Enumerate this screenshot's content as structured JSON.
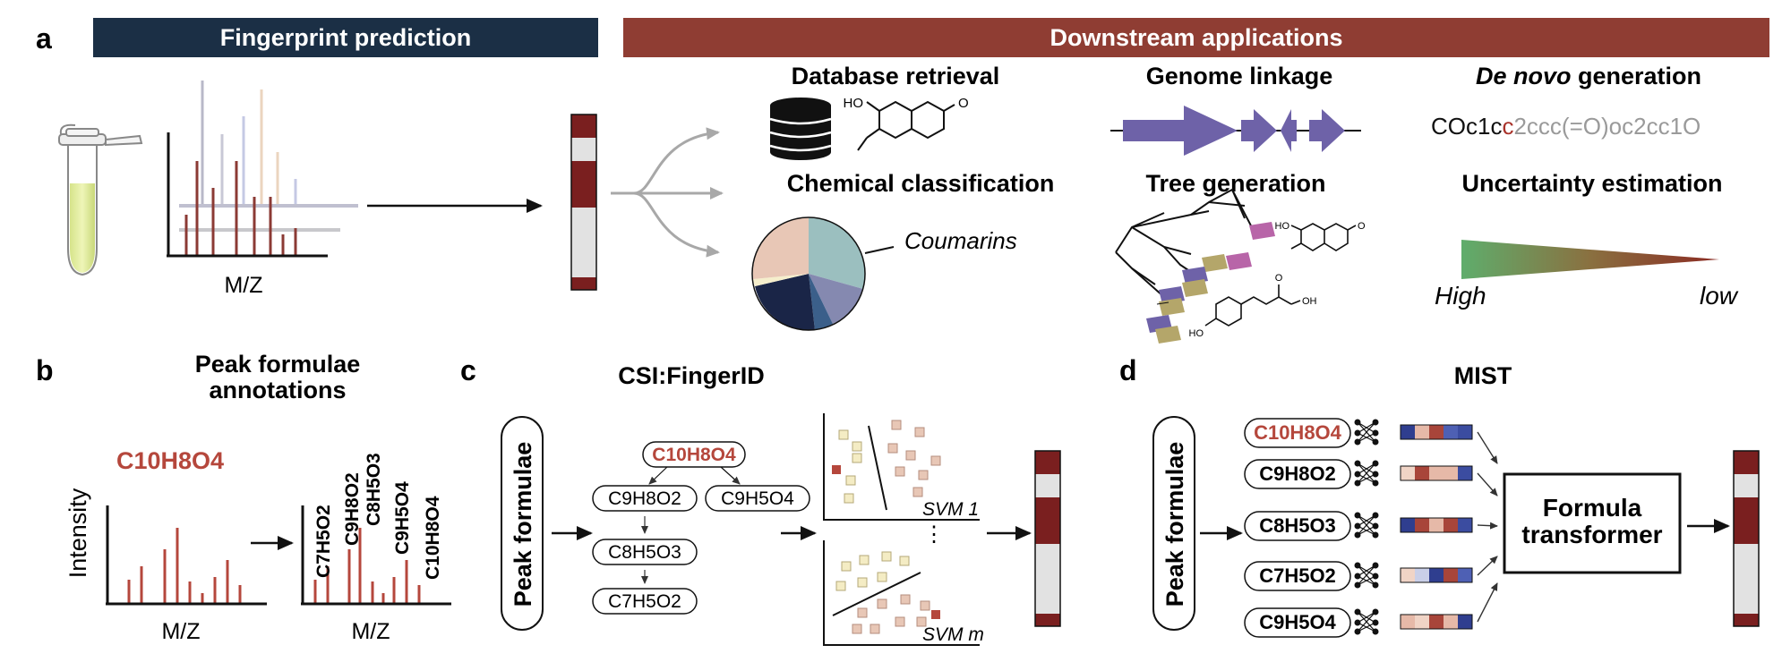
{
  "panel_a": {
    "letter": "a",
    "banner_left": "Fingerprint prediction",
    "banner_right": "Downstream applications",
    "mz_label": "M/Z",
    "db_title": "Database retrieval",
    "class_title": "Chemical classification",
    "coumarins_label": "Coumarins",
    "genome_title": "Genome linkage",
    "tree_title": "Tree generation",
    "denovo_italic": "De novo",
    "denovo_rest": " generation",
    "smiles_dark": "COc1c",
    "smiles_red": "c",
    "smiles_gray": "2ccc(=O)oc2cc1O",
    "uncert_title": "Uncertainty estimation",
    "high_label": "High",
    "low_label": "low",
    "mol_ho": "HO",
    "mol_o": "O",
    "mol_oh": "OH"
  },
  "panel_b": {
    "letter": "b",
    "title_line1": "Peak formulae",
    "title_line2": "annotations",
    "formula": "C10H8O4",
    "intensity": "Intensity",
    "mz1": "M/Z",
    "mz2": "M/Z",
    "peaks": [
      "C7H5O2",
      "C9H8O2",
      "C8H5O3",
      "C9H5O4",
      "C10H8O4"
    ]
  },
  "panel_c": {
    "letter": "c",
    "title": "CSI:FingerID",
    "peak_formulae": "Peak formulae",
    "tree_root": "C10H8O4",
    "tree_left": "C9H8O2",
    "tree_right": "C9H5O4",
    "tree_mid": "C8H5O3",
    "tree_leaf": "C7H5O2",
    "svm1": "SVM 1",
    "svmm": "SVM m",
    "dots": "⋮"
  },
  "panel_d": {
    "letter": "d",
    "title": "MIST",
    "peak_formulae": "Peak formulae",
    "formulas": [
      "C10H8O4",
      "C9H8O2",
      "C8H5O3",
      "C7H5O2",
      "C9H5O4"
    ],
    "transformer_line1": "Formula",
    "transformer_line2": "transformer"
  },
  "colors": {
    "navy": "#1b2f45",
    "brick": "#8f3d33",
    "maroon": "#7a1f1f",
    "formula_red": "#b5473c",
    "purple": "#6e62a8",
    "light_gray": "#e2e2e2"
  }
}
